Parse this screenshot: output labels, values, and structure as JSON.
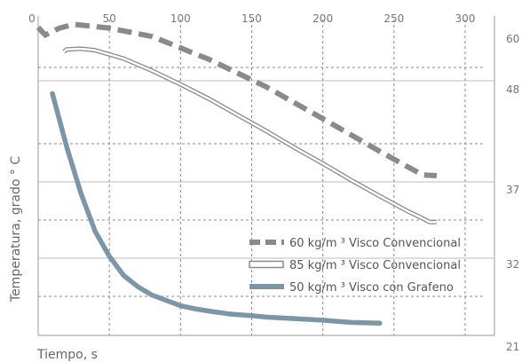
{
  "chart_data": {
    "type": "line",
    "title": "",
    "xlabel": "Tiempo, s",
    "ylabel": "Temperatura, grado ° C",
    "xlim": [
      0,
      320
    ],
    "ylim": [
      21,
      63
    ],
    "x_ticks": [
      "0",
      "50",
      "100",
      "150",
      "200",
      "250",
      "300"
    ],
    "y_ticks": [
      "60",
      "48",
      "37",
      "32",
      "21"
    ],
    "grid": true,
    "legend_position": "bottom-right",
    "series": [
      {
        "name": "60 kg/m ³ Visco Convencional",
        "style": "dashed-thick",
        "color": "#8a8a8a",
        "x": [
          0,
          5,
          15,
          25,
          50,
          80,
          120,
          160,
          200,
          240,
          270,
          280
        ],
        "y": [
          61.5,
          60.5,
          61.4,
          61.9,
          61.4,
          60.3,
          57.3,
          53.7,
          49.5,
          45.2,
          42.1,
          42.0
        ]
      },
      {
        "name": "85 kg/m ³ Visco Convencional",
        "style": "double-line",
        "color": "#8a8a8a",
        "x": [
          18,
          20,
          30,
          40,
          60,
          80,
          100,
          120,
          140,
          160,
          180,
          200,
          220,
          240,
          260,
          270,
          275,
          280
        ],
        "y": [
          58.3,
          58.6,
          58.7,
          58.5,
          57.4,
          55.8,
          54.0,
          52.1,
          50.0,
          47.9,
          45.7,
          43.6,
          41.4,
          39.3,
          37.3,
          36.4,
          35.9,
          35.9
        ]
      },
      {
        "name": "50 kg/m ³ Visco con Grafeno",
        "style": "solid-thick",
        "color": "#7b96a6",
        "x": [
          10,
          20,
          30,
          40,
          50,
          60,
          70,
          80,
          90,
          100,
          110,
          120,
          135,
          150,
          160,
          180,
          200,
          220,
          240
        ],
        "y": [
          52.8,
          45.8,
          39.7,
          34.7,
          31.4,
          28.9,
          27.4,
          26.3,
          25.6,
          24.9,
          24.5,
          24.2,
          23.8,
          23.6,
          23.4,
          23.2,
          23.0,
          22.7,
          22.6
        ]
      }
    ]
  }
}
